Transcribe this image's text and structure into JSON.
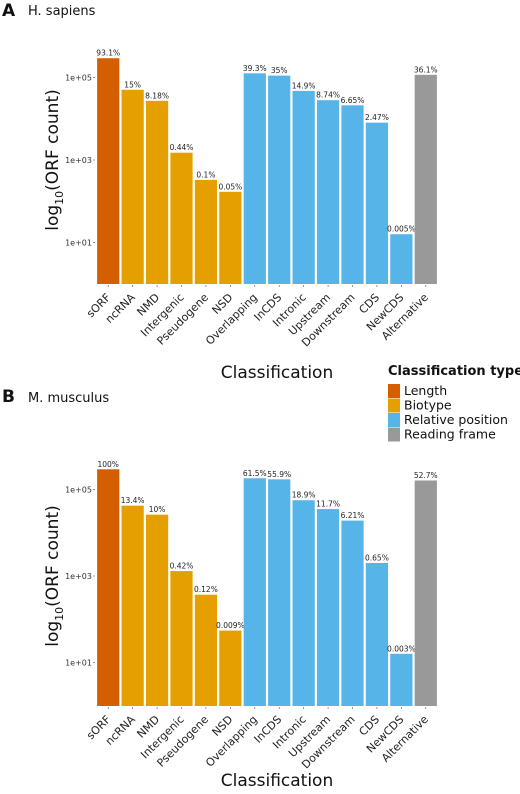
{
  "chart_data": [
    {
      "type": "bar",
      "panel_label": "A",
      "title": "H. sapiens",
      "xlabel": "Classification",
      "ylabel_main": "log",
      "ylabel_sub": "10",
      "ylabel_rest": "(ORF count)",
      "y_scale": "log",
      "ylim": [
        1,
        1000000
      ],
      "ytick_values": [
        10,
        1000,
        100000
      ],
      "ytick_labels": [
        "1e+01",
        "1e+03",
        "1e+05"
      ],
      "categories": [
        "sORF",
        "ncRNA",
        "NMD",
        "Intergenic",
        "Pseudogene",
        "NSD",
        "Overlapping",
        "InCDS",
        "Intronic",
        "Upstream",
        "Downstream",
        "CDS",
        "NewCDS",
        "Alternative"
      ],
      "values": [
        290000,
        50000,
        27000,
        1500,
        330,
        170,
        125000,
        110000,
        47000,
        28000,
        21000,
        8000,
        16,
        115000
      ],
      "data_labels": [
        "93.1%",
        "15%",
        "8.18%",
        "0.44%",
        "0.1%",
        "0.05%",
        "39.3%",
        "35%",
        "14.9%",
        "8.74%",
        "6.65%",
        "2.47%",
        "0.005%",
        "36.1%"
      ],
      "groups": [
        "Length",
        "Biotype",
        "Biotype",
        "Biotype",
        "Biotype",
        "Biotype",
        "Relative position",
        "Relative position",
        "Relative position",
        "Relative position",
        "Relative position",
        "Relative position",
        "Relative position",
        "Reading frame"
      ]
    },
    {
      "type": "bar",
      "panel_label": "B",
      "title": "M. musculus",
      "xlabel": "Classification",
      "ylabel_main": "log",
      "ylabel_sub": "10",
      "ylabel_rest": "(ORF count)",
      "y_scale": "log",
      "ylim": [
        1,
        1000000
      ],
      "ytick_values": [
        10,
        1000,
        100000
      ],
      "ytick_labels": [
        "1e+01",
        "1e+03",
        "1e+05"
      ],
      "categories": [
        "sORF",
        "ncRNA",
        "NMD",
        "Intergenic",
        "Pseudogene",
        "NSD",
        "Overlapping",
        "InCDS",
        "Intronic",
        "Upstream",
        "Downstream",
        "CDS",
        "NewCDS",
        "Alternative"
      ],
      "values": [
        290000,
        42000,
        26000,
        1300,
        370,
        55,
        180000,
        170000,
        56000,
        35000,
        19000,
        2000,
        16,
        160000
      ],
      "data_labels": [
        "100%",
        "13.4%",
        "10%",
        "0.42%",
        "0.12%",
        "0.009%",
        "61.5%",
        "55.9%",
        "18.9%",
        "11.7%",
        "6.21%",
        "0.65%",
        "0.003%",
        "52.7%"
      ],
      "groups": [
        "Length",
        "Biotype",
        "Biotype",
        "Biotype",
        "Biotype",
        "Biotype",
        "Relative position",
        "Relative position",
        "Relative position",
        "Relative position",
        "Relative position",
        "Relative position",
        "Relative position",
        "Reading frame"
      ]
    }
  ],
  "legend": {
    "title": "Classification type",
    "placement": "right",
    "items": [
      {
        "label": "Length",
        "color": "#D55E00"
      },
      {
        "label": "Biotype",
        "color": "#E69F00"
      },
      {
        "label": "Relative position",
        "color": "#56B4E9"
      },
      {
        "label": "Reading frame",
        "color": "#999999"
      }
    ]
  }
}
